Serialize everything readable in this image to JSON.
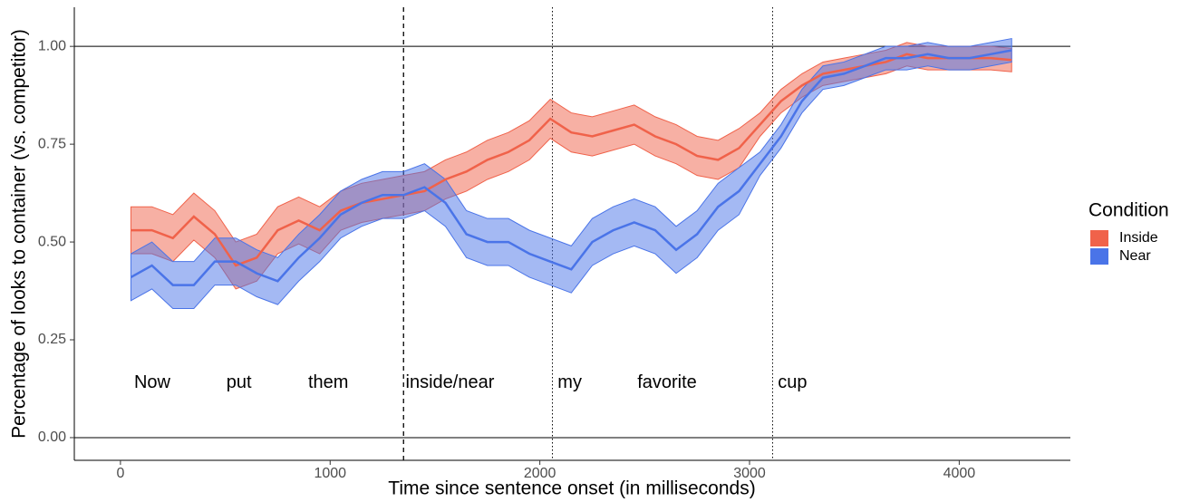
{
  "chart_data": {
    "type": "line-band",
    "xlabel": "Time since sentence onset (in milliseconds)",
    "ylabel": "Percentage of looks to container (vs. competitor)",
    "x": [
      50,
      150,
      250,
      350,
      450,
      550,
      650,
      750,
      850,
      950,
      1050,
      1150,
      1250,
      1350,
      1450,
      1550,
      1650,
      1750,
      1850,
      1950,
      2050,
      2150,
      2250,
      2350,
      2450,
      2550,
      2650,
      2750,
      2850,
      2950,
      3050,
      3150,
      3250,
      3350,
      3450,
      3550,
      3650,
      3750,
      3850,
      3950,
      4050,
      4150,
      4250
    ],
    "series": [
      {
        "name": "Inside",
        "color": "#f0624a",
        "values": [
          0.53,
          0.53,
          0.51,
          0.565,
          0.52,
          0.44,
          0.46,
          0.53,
          0.555,
          0.53,
          0.58,
          0.6,
          0.61,
          0.62,
          0.63,
          0.66,
          0.68,
          0.71,
          0.73,
          0.76,
          0.815,
          0.78,
          0.77,
          0.785,
          0.8,
          0.77,
          0.75,
          0.72,
          0.71,
          0.74,
          0.8,
          0.86,
          0.9,
          0.93,
          0.94,
          0.95,
          0.96,
          0.98,
          0.97,
          0.97,
          0.97,
          0.97,
          0.965
        ],
        "lower": [
          0.47,
          0.47,
          0.45,
          0.505,
          0.46,
          0.38,
          0.4,
          0.47,
          0.495,
          0.47,
          0.53,
          0.55,
          0.56,
          0.57,
          0.58,
          0.61,
          0.63,
          0.66,
          0.68,
          0.71,
          0.765,
          0.73,
          0.72,
          0.735,
          0.75,
          0.72,
          0.7,
          0.67,
          0.66,
          0.69,
          0.77,
          0.83,
          0.87,
          0.9,
          0.91,
          0.92,
          0.93,
          0.95,
          0.94,
          0.94,
          0.94,
          0.94,
          0.935
        ],
        "upper": [
          0.59,
          0.59,
          0.57,
          0.625,
          0.58,
          0.5,
          0.52,
          0.59,
          0.615,
          0.59,
          0.63,
          0.65,
          0.66,
          0.67,
          0.68,
          0.71,
          0.73,
          0.76,
          0.78,
          0.81,
          0.865,
          0.83,
          0.82,
          0.835,
          0.85,
          0.82,
          0.8,
          0.77,
          0.76,
          0.79,
          0.83,
          0.89,
          0.93,
          0.96,
          0.97,
          0.98,
          0.99,
          1.01,
          1.0,
          1.0,
          1.0,
          1.0,
          0.995
        ]
      },
      {
        "name": "Near",
        "color": "#4a74e8",
        "values": [
          0.41,
          0.44,
          0.39,
          0.39,
          0.45,
          0.45,
          0.42,
          0.4,
          0.46,
          0.51,
          0.57,
          0.6,
          0.62,
          0.62,
          0.64,
          0.6,
          0.52,
          0.5,
          0.5,
          0.47,
          0.45,
          0.43,
          0.5,
          0.53,
          0.55,
          0.53,
          0.48,
          0.52,
          0.59,
          0.63,
          0.7,
          0.77,
          0.86,
          0.92,
          0.93,
          0.95,
          0.97,
          0.97,
          0.98,
          0.97,
          0.97,
          0.98,
          0.99
        ],
        "lower": [
          0.35,
          0.38,
          0.33,
          0.33,
          0.39,
          0.39,
          0.36,
          0.34,
          0.4,
          0.45,
          0.51,
          0.54,
          0.56,
          0.56,
          0.58,
          0.54,
          0.46,
          0.44,
          0.44,
          0.41,
          0.39,
          0.37,
          0.44,
          0.47,
          0.49,
          0.47,
          0.42,
          0.46,
          0.53,
          0.57,
          0.67,
          0.74,
          0.83,
          0.89,
          0.9,
          0.92,
          0.94,
          0.94,
          0.95,
          0.94,
          0.94,
          0.95,
          0.96
        ],
        "upper": [
          0.47,
          0.5,
          0.45,
          0.45,
          0.51,
          0.51,
          0.48,
          0.46,
          0.52,
          0.57,
          0.63,
          0.66,
          0.68,
          0.68,
          0.7,
          0.66,
          0.58,
          0.56,
          0.56,
          0.53,
          0.51,
          0.49,
          0.56,
          0.59,
          0.61,
          0.59,
          0.54,
          0.58,
          0.65,
          0.69,
          0.73,
          0.8,
          0.89,
          0.95,
          0.96,
          0.98,
          1.0,
          1.0,
          1.01,
          1.0,
          1.0,
          1.01,
          1.02
        ]
      }
    ],
    "xlim": [
      -220,
      4530
    ],
    "ylim": [
      -0.058,
      1.1
    ],
    "xticks": [
      0,
      1000,
      2000,
      3000,
      4000
    ],
    "yticks": [
      {
        "value": 0,
        "label": "0.00"
      },
      {
        "value": 0.25,
        "label": "0.25"
      },
      {
        "value": 0.5,
        "label": "0.50"
      },
      {
        "value": 0.75,
        "label": "0.75"
      },
      {
        "value": 1,
        "label": "1.00"
      }
    ],
    "hlines": [
      0,
      1
    ],
    "vlines": [
      {
        "x": 1350,
        "style": "dashed"
      },
      {
        "x": 2060,
        "style": "dotted"
      },
      {
        "x": 3110,
        "style": "dotted"
      }
    ],
    "annotations": [
      {
        "text": "Now",
        "x": 65,
        "y": 0.14
      },
      {
        "text": "put",
        "x": 505,
        "y": 0.14
      },
      {
        "text": "them",
        "x": 895,
        "y": 0.14
      },
      {
        "text": "inside/near",
        "x": 1360,
        "y": 0.14
      },
      {
        "text": "my",
        "x": 2085,
        "y": 0.14
      },
      {
        "text": "favorite",
        "x": 2465,
        "y": 0.14
      },
      {
        "text": "cup",
        "x": 3135,
        "y": 0.14
      }
    ],
    "legend": {
      "title": "Condition",
      "position": "right"
    }
  }
}
